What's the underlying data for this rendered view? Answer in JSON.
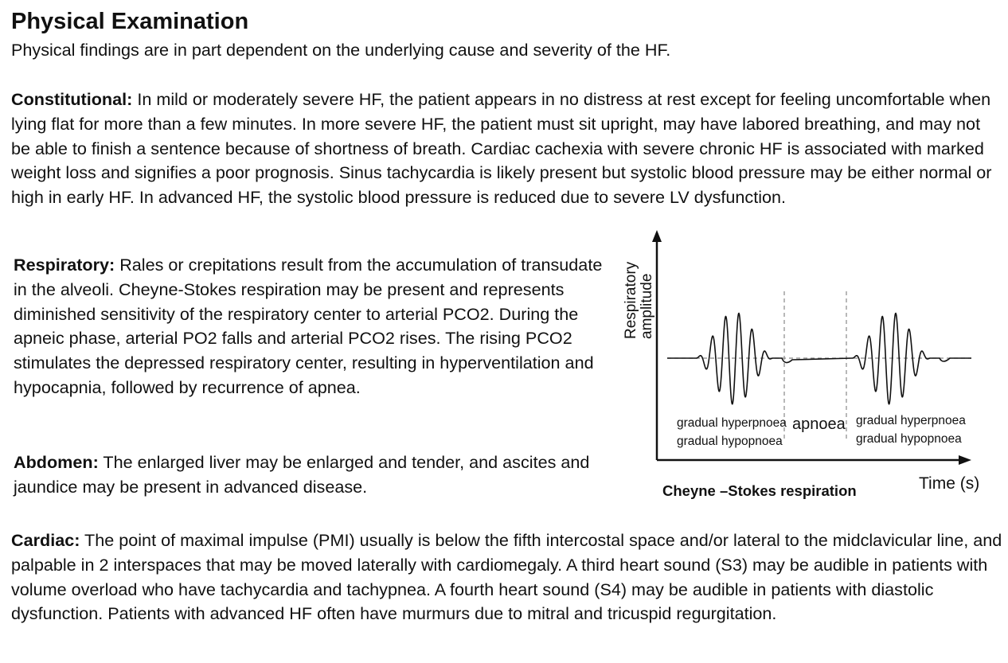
{
  "title": "Physical Examination",
  "intro": "Physical findings are in part dependent on the underlying cause and severity of the HF.",
  "sections": {
    "constitutional": {
      "heading": "Constitutional:",
      "text": " In mild or moderately severe HF, the patient appears in no distress at rest except for feeling uncomfortable when lying flat for more than a few minutes. In more severe HF, the patient must sit upright, may have labored breathing, and may not be able to finish a sentence because of shortness of breath. Cardiac cachexia with severe chronic HF is associated with marked weight loss and signifies a poor prognosis. Sinus tachycardia is likely present but systolic blood pressure may be either normal or high in early HF. In  advanced HF, the systolic blood pressure is reduced due to severe LV dysfunction."
    },
    "respiratory": {
      "heading": "Respiratory:",
      "text": " Rales or crepitations result from the accumulation of transudate in the alveoli. Cheyne-Stokes respiration may be present and represents diminished sensitivity of the respiratory center to arterial  PCO2. During the apneic phase, arterial PO2 falls and arterial PCO2 rises. The rising PCO2 stimulates the depressed respiratory center, resulting in hyperventilation and hypocapnia, followed by recurrence of apnea."
    },
    "abdomen": {
      "heading": "Abdomen:",
      "text": " The enlarged liver may be enlarged and tender, and ascites and jaundice may be present in advanced disease."
    },
    "cardiac": {
      "heading": "Cardiac:",
      "text": " The point of maximal impulse (PMI) usually is below the fifth intercostal space and/or lateral to the midclavicular line, and palpable in 2 interspaces that may be moved laterally with cardiomegaly. A third heart sound (S3) may be audible in patients with volume overload who have tachycardia and tachypnea. A fourth heart sound (S4) may be audible in patients with diastolic dysfunction. Patients with advanced HF often have murmurs due to mitral and tricuspid regurgitation."
    }
  },
  "figure": {
    "caption": "Cheyne –Stokes respiration",
    "y_axis_label_line1": "Respiratory",
    "y_axis_label_line2": "amplitude",
    "x_axis_label": "Time (s)",
    "phase_labels": {
      "left_line1": "gradual hyperpnoea",
      "left_line2": "gradual hypopnoea",
      "middle": "apnoea",
      "right_line1": "gradual hyperpnoea",
      "right_line2": "gradual hypopnoea"
    },
    "stroke_color": "#111111",
    "baseline_color": "#888888"
  }
}
